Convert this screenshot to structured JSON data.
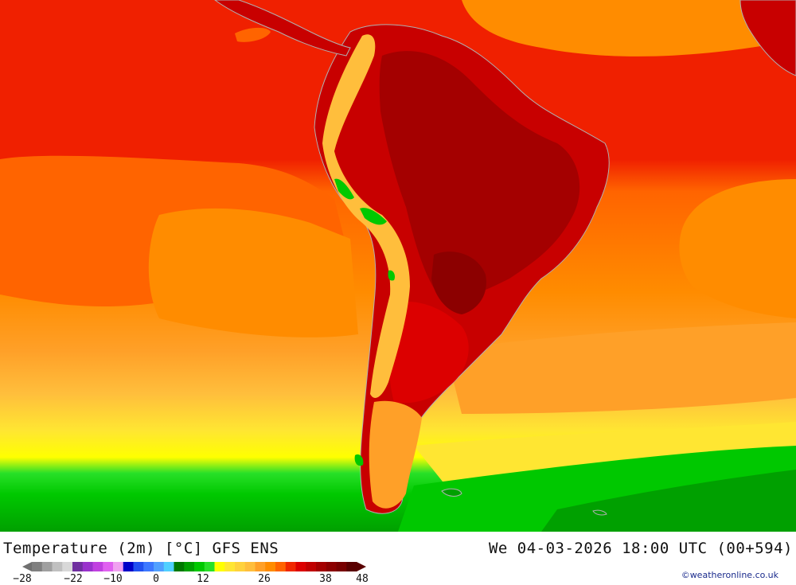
{
  "map": {
    "title": "Temperature (2m) [°C] GFS ENS",
    "datetime": "We 04-03-2026 18:00 UTC (00+594)",
    "credit": "©weatheronline.co.uk",
    "colors": {
      "hot_dark": "#8b0000",
      "hot": "#c80000",
      "red": "#f01c00",
      "orange_red": "#ff5a00",
      "orange": "#ff8c00",
      "light_orange": "#ffaa28",
      "yellow_orange": "#ffc832",
      "yellow": "#ffe614",
      "green": "#00c800",
      "dark_green": "#009600"
    }
  },
  "legend": {
    "tick_labels": [
      "-28",
      "-22",
      "-10",
      "0",
      "12",
      "26",
      "38",
      "48"
    ],
    "swatches": [
      "#808080",
      "#a0a0a0",
      "#c0c0c0",
      "#d8d8d8",
      "#7030a0",
      "#9932cc",
      "#c040e0",
      "#e060f0",
      "#f0a0f0",
      "#0000c8",
      "#2050f0",
      "#3c78ff",
      "#50a0ff",
      "#50d0ff",
      "#007800",
      "#00a000",
      "#00c800",
      "#28e028",
      "#ffff00",
      "#ffe632",
      "#ffd23c",
      "#ffbe3c",
      "#ffa028",
      "#ff8c00",
      "#ff6400",
      "#f02800",
      "#dc0000",
      "#c00000",
      "#a40000",
      "#8c0000",
      "#780000",
      "#5a0000"
    ]
  }
}
